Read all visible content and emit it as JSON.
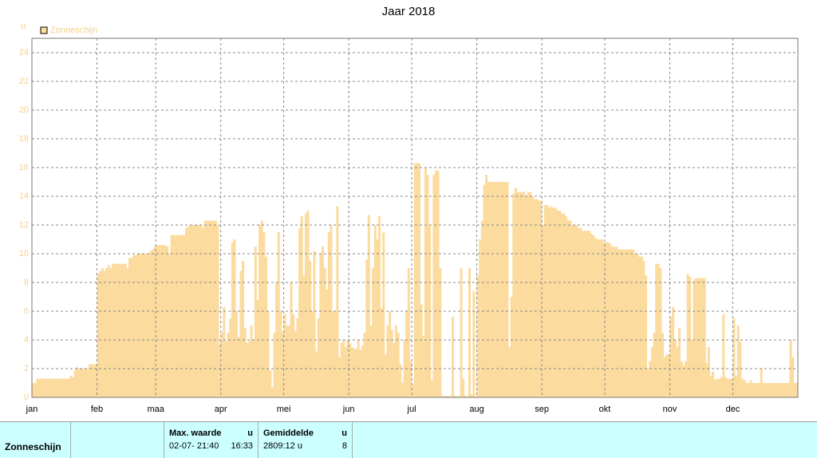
{
  "chart_data": {
    "type": "bar",
    "title": "Jaar 2018",
    "y_label": "u",
    "series": [
      {
        "name": "Zonneschijn",
        "color": "#fcdb9f",
        "values": [
          1.0,
          1.0,
          1.3,
          1.3,
          1.3,
          1.3,
          1.3,
          1.3,
          1.3,
          1.3,
          1.3,
          1.3,
          1.3,
          1.3,
          1.3,
          1.3,
          1.3,
          1.3,
          1.5,
          1.4,
          1.9,
          2.1,
          2.0,
          2.0,
          2.0,
          2.0,
          2.0,
          2.3,
          2.3,
          2.3,
          2.3,
          8.6,
          8.8,
          9.0,
          8.8,
          9.0,
          9.2,
          9.0,
          9.3,
          9.3,
          9.3,
          9.3,
          9.3,
          9.3,
          9.3,
          9.0,
          9.7,
          9.7,
          9.9,
          9.9,
          10.0,
          10.0,
          10.0,
          10.0,
          10.0,
          10.0,
          10.2,
          10.3,
          10.5,
          10.6,
          10.6,
          10.6,
          10.6,
          10.6,
          10.5,
          10.0,
          11.3,
          11.3,
          11.3,
          11.3,
          11.3,
          11.3,
          11.3,
          11.8,
          11.9,
          12.0,
          12.0,
          12.0,
          12.0,
          12.0,
          12.0,
          11.8,
          12.3,
          12.3,
          12.3,
          12.3,
          12.3,
          12.3,
          12.0,
          3.8,
          4.5,
          6.3,
          3.9,
          4.5,
          5.5,
          10.8,
          11.0,
          6.0,
          4.2,
          8.8,
          9.5,
          4.8,
          3.8,
          3.9,
          5.0,
          4.0,
          10.5,
          6.8,
          12.0,
          12.3,
          11.5,
          9.8,
          6.0,
          1.9,
          0.7,
          4.5,
          8.0,
          11.5,
          6.0,
          4.5,
          5.8,
          5.0,
          5.0,
          8.0,
          5.8,
          4.6,
          5.5,
          11.8,
          12.6,
          8.5,
          12.8,
          13.0,
          9.5,
          6.0,
          10.2,
          3.2,
          5.5,
          10.0,
          10.5,
          9.0,
          7.5,
          11.5,
          12.0,
          6.0,
          6.0,
          13.3,
          2.8,
          3.8,
          4.0,
          3.5,
          4.0,
          3.8,
          3.5,
          3.4,
          3.4,
          4.0,
          3.3,
          3.6,
          4.5,
          9.6,
          12.7,
          5.0,
          9.0,
          12.0,
          11.0,
          12.6,
          6.2,
          11.5,
          3.0,
          5.0,
          6.0,
          4.7,
          3.8,
          5.0,
          4.5,
          2.3,
          1.0,
          4.0,
          6.0,
          9.0,
          2.5,
          0.9,
          16.3,
          16.3,
          16.3,
          6.5,
          4.3,
          16.0,
          15.5,
          12.0,
          1.2,
          15.5,
          15.8,
          15.8,
          9.0,
          0.1,
          0.1,
          0.1,
          0.1,
          0.1,
          5.6,
          0.1,
          0.1,
          0.1,
          9.0,
          1.3,
          0.1,
          0.1,
          9.0,
          0.2,
          7.4,
          0.1,
          8.5,
          11.0,
          12.3,
          14.8,
          15.5,
          15.0,
          15.0,
          15.0,
          15.0,
          15.0,
          15.0,
          15.0,
          15.0,
          15.0,
          15.0,
          3.5,
          7.0,
          14.2,
          14.6,
          14.3,
          14.3,
          14.3,
          14.3,
          14.0,
          14.3,
          14.3,
          14.0,
          13.8,
          13.8,
          13.7,
          13.7,
          12.0,
          13.4,
          13.4,
          13.2,
          13.3,
          13.2,
          13.2,
          13.0,
          13.0,
          12.8,
          12.8,
          12.6,
          12.3,
          12.3,
          12.0,
          12.0,
          12.0,
          11.8,
          11.8,
          11.6,
          11.6,
          11.6,
          11.6,
          11.4,
          11.3,
          11.1,
          11.0,
          11.0,
          11.0,
          10.8,
          10.8,
          10.8,
          10.7,
          10.5,
          10.5,
          10.5,
          10.3,
          10.3,
          10.3,
          10.3,
          10.3,
          10.3,
          10.3,
          10.3,
          10.0,
          10.0,
          9.8,
          9.8,
          9.5,
          8.5,
          2.0,
          2.5,
          3.5,
          4.5,
          9.3,
          9.3,
          9.0,
          4.5,
          2.8,
          3.0,
          3.0,
          5.6,
          6.3,
          4.0,
          3.5,
          4.8,
          2.5,
          2.2,
          2.5,
          8.6,
          8.4,
          4.0,
          8.2,
          8.3,
          8.3,
          8.3,
          8.3,
          8.3,
          2.4,
          3.5,
          1.5,
          1.8,
          1.2,
          1.3,
          1.3,
          1.4,
          5.8,
          1.4,
          1.3,
          1.3,
          1.3,
          5.5,
          1.5,
          5.0,
          3.9,
          1.3,
          1.2,
          1.0,
          1.0,
          1.2,
          1.0,
          1.0,
          1.0,
          1.0,
          2.0,
          1.0,
          1.0,
          1.0,
          1.0,
          1.0,
          1.0,
          1.0,
          1.0,
          1.0,
          1.0,
          1.0,
          1.0,
          1.0,
          4.0,
          2.8,
          1.0,
          1.0
        ]
      }
    ],
    "xlim": [
      0,
      365
    ],
    "xticks": [
      {
        "value": 0,
        "label": "jan"
      },
      {
        "value": 31,
        "label": "feb"
      },
      {
        "value": 59,
        "label": "maa"
      },
      {
        "value": 90,
        "label": "apr"
      },
      {
        "value": 120,
        "label": "mei"
      },
      {
        "value": 151,
        "label": "jun"
      },
      {
        "value": 181,
        "label": "jul"
      },
      {
        "value": 212,
        "label": "aug"
      },
      {
        "value": 243,
        "label": "sep"
      },
      {
        "value": 273,
        "label": "okt"
      },
      {
        "value": 304,
        "label": "nov"
      },
      {
        "value": 334,
        "label": "dec"
      }
    ],
    "ylim": [
      0,
      25
    ],
    "yticks": [
      0,
      2,
      4,
      6,
      8,
      10,
      12,
      14,
      16,
      18,
      20,
      22,
      24
    ],
    "grid": true
  },
  "table": {
    "header": [
      "",
      "",
      "Max. waarde",
      "u",
      "Gemiddelde",
      "u"
    ],
    "rows": [
      [
        "Zonneschijn",
        "",
        "02-07- 21:40",
        "16:33",
        "2809:12 u",
        "8"
      ]
    ]
  }
}
